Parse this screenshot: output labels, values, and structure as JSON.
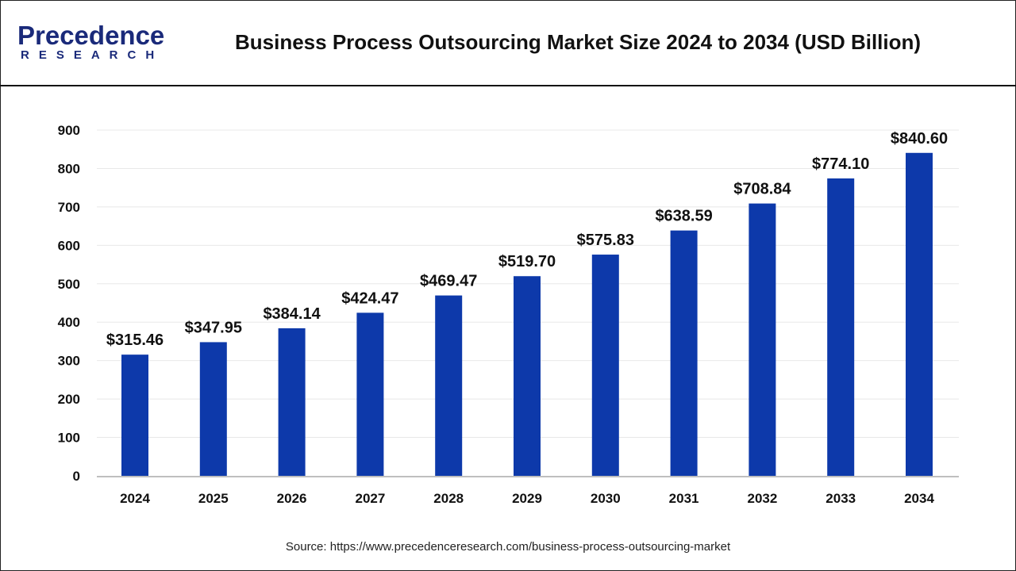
{
  "header": {
    "logo_line1": "Precedence",
    "logo_line2": "RESEARCH",
    "title": "Business Process Outsourcing Market Size 2024 to 2034 (USD Billion)"
  },
  "source": "Source: https://www.precedenceresearch.com/business-process-outsourcing-market",
  "colors": {
    "bar": "#0D39AA",
    "grid": "#e8e8e8",
    "axis": "#bfbfbf",
    "logo": "#1a2a7a"
  },
  "chart_data": {
    "type": "bar",
    "title": "Business Process Outsourcing Market Size 2024 to 2034 (USD Billion)",
    "categories": [
      "2024",
      "2025",
      "2026",
      "2027",
      "2028",
      "2029",
      "2030",
      "2031",
      "2032",
      "2033",
      "2034"
    ],
    "values": [
      315.46,
      347.95,
      384.14,
      424.47,
      469.47,
      519.7,
      575.83,
      638.59,
      708.84,
      774.1,
      840.6
    ],
    "data_labels": [
      "$315.46",
      "$347.95",
      "$384.14",
      "$424.47",
      "$469.47",
      "$519.70",
      "$575.83",
      "$638.59",
      "$708.84",
      "$774.10",
      "$840.60"
    ],
    "yticks": [
      0,
      100,
      200,
      300,
      400,
      500,
      600,
      700,
      800,
      900
    ],
    "ylim": [
      0,
      900
    ],
    "xlabel": "",
    "ylabel": "",
    "grid": true,
    "legend": "none"
  }
}
